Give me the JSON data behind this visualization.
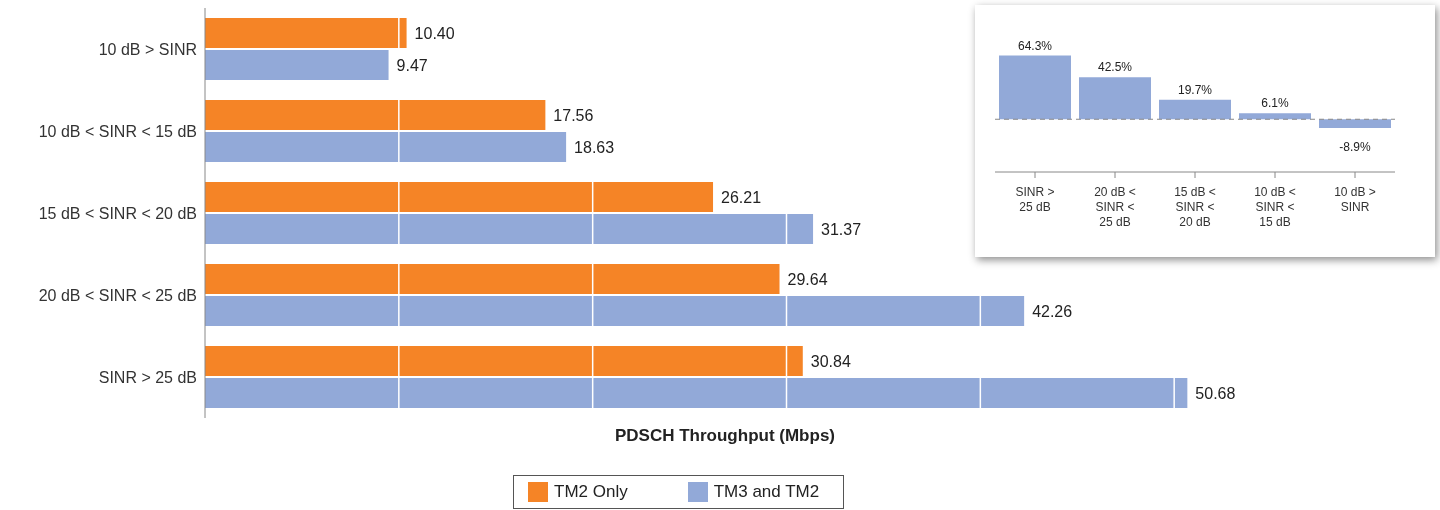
{
  "chart_data": [
    {
      "type": "bar",
      "orientation": "horizontal",
      "categories": [
        "10 dB > SINR",
        "10 dB < SINR < 15 dB",
        "15 dB < SINR < 20 dB",
        "20 dB < SINR < 25 dB",
        "SINR > 25 dB"
      ],
      "series": [
        {
          "name": "TM2 Only",
          "color": "#f58426",
          "values": [
            10.4,
            17.56,
            26.21,
            29.64,
            30.84
          ],
          "value_labels": [
            "10.40",
            "17.56",
            "26.21",
            "29.64",
            "30.84"
          ]
        },
        {
          "name": "TM3 and TM2",
          "color": "#92a9d8",
          "values": [
            9.47,
            18.63,
            31.37,
            42.26,
            50.68
          ],
          "value_labels": [
            "9.47",
            "18.63",
            "31.37",
            "42.26",
            "50.68"
          ]
        }
      ],
      "xlabel": "PDSCH Throughput (Mbps)",
      "xticks": [
        {
          "value": 10,
          "label": null
        },
        {
          "value": 20,
          "label": null
        },
        {
          "value": 30,
          "label": null
        },
        {
          "value": 40,
          "label": null
        },
        {
          "value": 50,
          "label": null
        }
      ],
      "tick_labels": "y",
      "grid": "x",
      "legend": "bottom"
    },
    {
      "type": "bar",
      "categories": [
        "SINR > 25 dB",
        "20 dB < SINR < 25 dB",
        "15 dB < SINR < 20 dB",
        "10 dB < SINR < 15 dB",
        "10 dB > SINR"
      ],
      "values": [
        64.3,
        42.5,
        19.7,
        6.1,
        -8.9
      ],
      "color": "#92a9d8",
      "value_labels": [
        "64.3%",
        "42.5%",
        "19.7%",
        "6.1%",
        "-8.9%"
      ],
      "ref_lines": [
        {
          "axis": "y",
          "value": 0,
          "line_style": "dashed",
          "color": "#888888"
        }
      ],
      "tick_labels": "x"
    }
  ]
}
